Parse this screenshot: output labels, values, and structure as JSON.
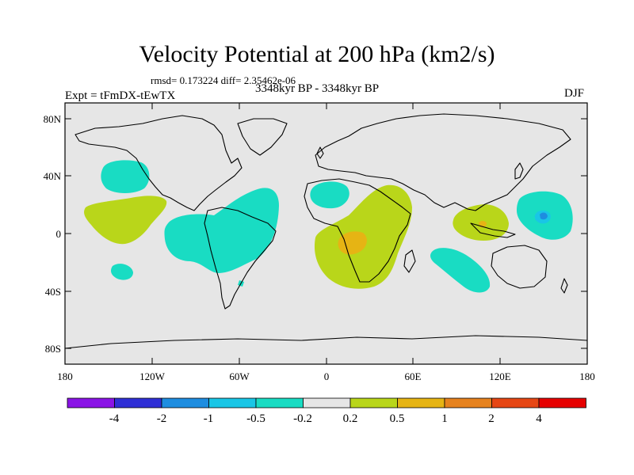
{
  "title": "Velocity Potential at 200 hPa (km2/s)",
  "subtitle_stats": "rmsd= 0.173224 diff= 2.35462e-06",
  "subtitle_left": "Expt = tFmDX-tEwTX",
  "subtitle_center": "3348kyr BP - 3348kyr BP",
  "subtitle_right": "DJF",
  "lat_labels": [
    "80N",
    "40N",
    "0",
    "40S",
    "80S"
  ],
  "lon_labels": [
    "180",
    "120W",
    "60W",
    "0",
    "60E",
    "120E",
    "180"
  ],
  "colorbar": {
    "labels": [
      "-4",
      "-2",
      "-1",
      "-0.5",
      "-0.2",
      "0.2",
      "0.5",
      "1",
      "2",
      "4"
    ],
    "colors": [
      "#8a14e6",
      "#2f2fd6",
      "#1e8de0",
      "#19c6e6",
      "#19dcc3",
      "#e6e6e6",
      "#b9d61a",
      "#e6b414",
      "#e6821e",
      "#e64614",
      "#e60000"
    ]
  },
  "colors": {
    "ocean_bg": "#e6e6e6",
    "coast": "#000000"
  }
}
